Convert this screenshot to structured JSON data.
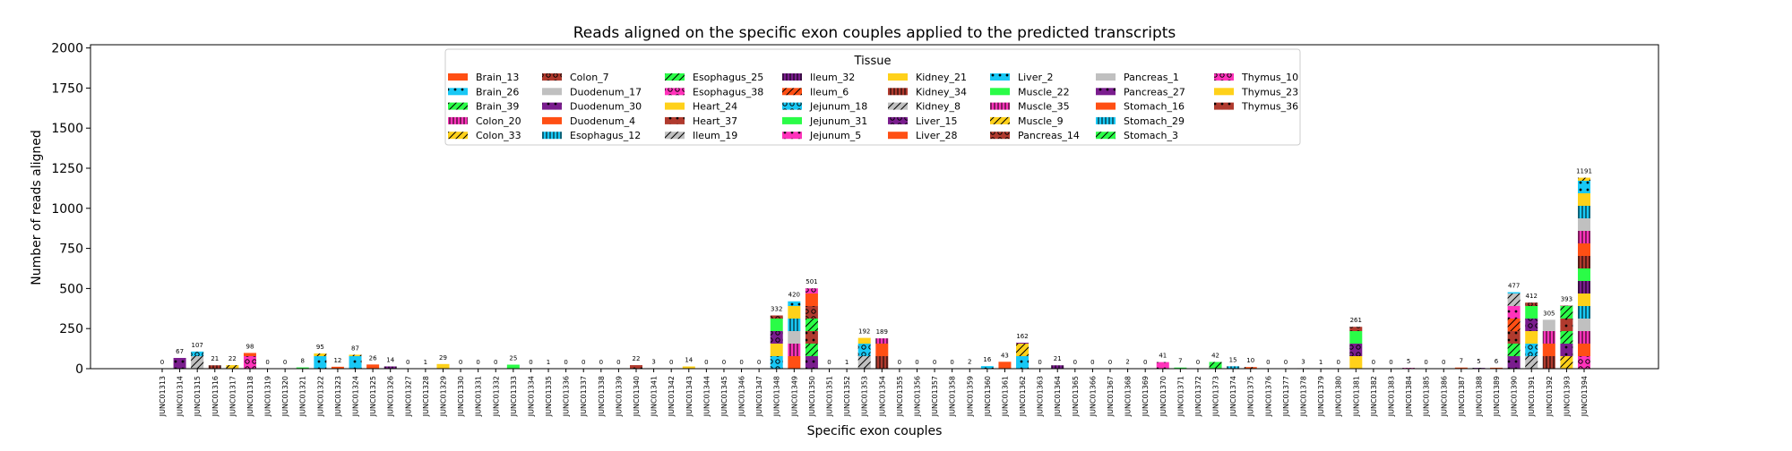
{
  "chart_data": {
    "type": "bar",
    "title": "Reads aligned on the specific exon couples applied to the predicted transcripts",
    "xlabel": "Specific exon couples",
    "ylabel": "Number of reads aligned",
    "ylim": [
      0,
      2020
    ],
    "yticks": [
      0,
      250,
      500,
      750,
      1000,
      1250,
      1500,
      1750,
      2000
    ],
    "stacked": true,
    "grid": false,
    "legend": {
      "title": "Tissue",
      "placement": "top-center",
      "columns": 8,
      "entries": [
        {
          "name": "Brain_13",
          "color": "#ff4f14",
          "hatch": "none"
        },
        {
          "name": "Brain_26",
          "color": "#18c8f5",
          "hatch": "dot"
        },
        {
          "name": "Brain_39",
          "color": "#2afc47",
          "hatch": "slash"
        },
        {
          "name": "Colon_20",
          "color": "#ff33bb",
          "hatch": "bar"
        },
        {
          "name": "Colon_33",
          "color": "#ffd11a",
          "hatch": "slash"
        },
        {
          "name": "Colon_7",
          "color": "#b03a2e",
          "hatch": "ring"
        },
        {
          "name": "Duodenum_17",
          "color": "#c0c0c0",
          "hatch": "none"
        },
        {
          "name": "Duodenum_30",
          "color": "#7a1d8e",
          "hatch": "dot"
        },
        {
          "name": "Duodenum_4",
          "color": "#ff4f14",
          "hatch": "none"
        },
        {
          "name": "Esophagus_12",
          "color": "#18c8f5",
          "hatch": "bar"
        },
        {
          "name": "Esophagus_25",
          "color": "#2afc47",
          "hatch": "slash"
        },
        {
          "name": "Esophagus_38",
          "color": "#ff33bb",
          "hatch": "ring"
        },
        {
          "name": "Heart_24",
          "color": "#ffd11a",
          "hatch": "none"
        },
        {
          "name": "Heart_37",
          "color": "#b03a2e",
          "hatch": "dot"
        },
        {
          "name": "Ileum_19",
          "color": "#c0c0c0",
          "hatch": "slash"
        },
        {
          "name": "Ileum_32",
          "color": "#7a1d8e",
          "hatch": "bar"
        },
        {
          "name": "Ileum_6",
          "color": "#ff4f14",
          "hatch": "slash"
        },
        {
          "name": "Jejunum_18",
          "color": "#18c8f5",
          "hatch": "ring"
        },
        {
          "name": "Jejunum_31",
          "color": "#2afc47",
          "hatch": "none"
        },
        {
          "name": "Jejunum_5",
          "color": "#ff33bb",
          "hatch": "dot"
        },
        {
          "name": "Kidney_21",
          "color": "#ffd11a",
          "hatch": "none"
        },
        {
          "name": "Kidney_34",
          "color": "#b03a2e",
          "hatch": "bar"
        },
        {
          "name": "Kidney_8",
          "color": "#c0c0c0",
          "hatch": "slash"
        },
        {
          "name": "Liver_15",
          "color": "#7a1d8e",
          "hatch": "ring"
        },
        {
          "name": "Liver_28",
          "color": "#ff4f14",
          "hatch": "none"
        },
        {
          "name": "Liver_2",
          "color": "#18c8f5",
          "hatch": "dot"
        },
        {
          "name": "Muscle_22",
          "color": "#2afc47",
          "hatch": "none"
        },
        {
          "name": "Muscle_35",
          "color": "#ff33bb",
          "hatch": "bar"
        },
        {
          "name": "Muscle_9",
          "color": "#ffd11a",
          "hatch": "slash"
        },
        {
          "name": "Pancreas_14",
          "color": "#b03a2e",
          "hatch": "ring"
        },
        {
          "name": "Pancreas_1",
          "color": "#c0c0c0",
          "hatch": "none"
        },
        {
          "name": "Pancreas_27",
          "color": "#7a1d8e",
          "hatch": "dot"
        },
        {
          "name": "Stomach_16",
          "color": "#ff4f14",
          "hatch": "none"
        },
        {
          "name": "Stomach_29",
          "color": "#18c8f5",
          "hatch": "bar"
        },
        {
          "name": "Stomach_3",
          "color": "#2afc47",
          "hatch": "slash"
        },
        {
          "name": "Thymus_10",
          "color": "#ff33bb",
          "hatch": "ring"
        },
        {
          "name": "Thymus_23",
          "color": "#ffd11a",
          "hatch": "none"
        },
        {
          "name": "Thymus_36",
          "color": "#b03a2e",
          "hatch": "dot"
        }
      ]
    },
    "categories": [
      "JUNC01313",
      "JUNC01314",
      "JUNC01315",
      "JUNC01316",
      "JUNC01317",
      "JUNC01318",
      "JUNC01319",
      "JUNC01320",
      "JUNC01321",
      "JUNC01322",
      "JUNC01323",
      "JUNC01324",
      "JUNC01325",
      "JUNC01326",
      "JUNC01327",
      "JUNC01328",
      "JUNC01329",
      "JUNC01330",
      "JUNC01331",
      "JUNC01332",
      "JUNC01333",
      "JUNC01334",
      "JUNC01335",
      "JUNC01336",
      "JUNC01337",
      "JUNC01338",
      "JUNC01339",
      "JUNC01340",
      "JUNC01341",
      "JUNC01342",
      "JUNC01343",
      "JUNC01344",
      "JUNC01345",
      "JUNC01346",
      "JUNC01347",
      "JUNC01348",
      "JUNC01349",
      "JUNC01350",
      "JUNC01351",
      "JUNC01352",
      "JUNC01353",
      "JUNC01354",
      "JUNC01355",
      "JUNC01356",
      "JUNC01357",
      "JUNC01358",
      "JUNC01359",
      "JUNC01360",
      "JUNC01361",
      "JUNC01362",
      "JUNC01363",
      "JUNC01364",
      "JUNC01365",
      "JUNC01366",
      "JUNC01367",
      "JUNC01368",
      "JUNC01369",
      "JUNC01370",
      "JUNC01371",
      "JUNC01372",
      "JUNC01373",
      "JUNC01374",
      "JUNC01375",
      "JUNC01376",
      "JUNC01377",
      "JUNC01378",
      "JUNC01379",
      "JUNC01380",
      "JUNC01381",
      "JUNC01382",
      "JUNC01383",
      "JUNC01384",
      "JUNC01385",
      "JUNC01386",
      "JUNC01387",
      "JUNC01388",
      "JUNC01389",
      "JUNC01390",
      "JUNC01391",
      "JUNC01392",
      "JUNC01393",
      "JUNC01394"
    ],
    "totals": [
      0,
      67,
      107,
      21,
      22,
      98,
      0,
      0,
      8,
      95,
      12,
      87,
      26,
      14,
      0,
      1,
      29,
      0,
      0,
      0,
      25,
      0,
      1,
      0,
      0,
      0,
      0,
      22,
      3,
      0,
      14,
      0,
      0,
      0,
      0,
      332,
      420,
      501,
      0,
      1,
      192,
      189,
      0,
      0,
      0,
      0,
      2,
      16,
      43,
      162,
      0,
      21,
      0,
      0,
      0,
      2,
      0,
      41,
      7,
      0,
      42,
      15,
      10,
      0,
      0,
      3,
      1,
      0,
      261,
      0,
      0,
      5,
      0,
      0,
      7,
      5,
      6,
      477,
      412,
      305,
      393,
      1191
    ]
  }
}
